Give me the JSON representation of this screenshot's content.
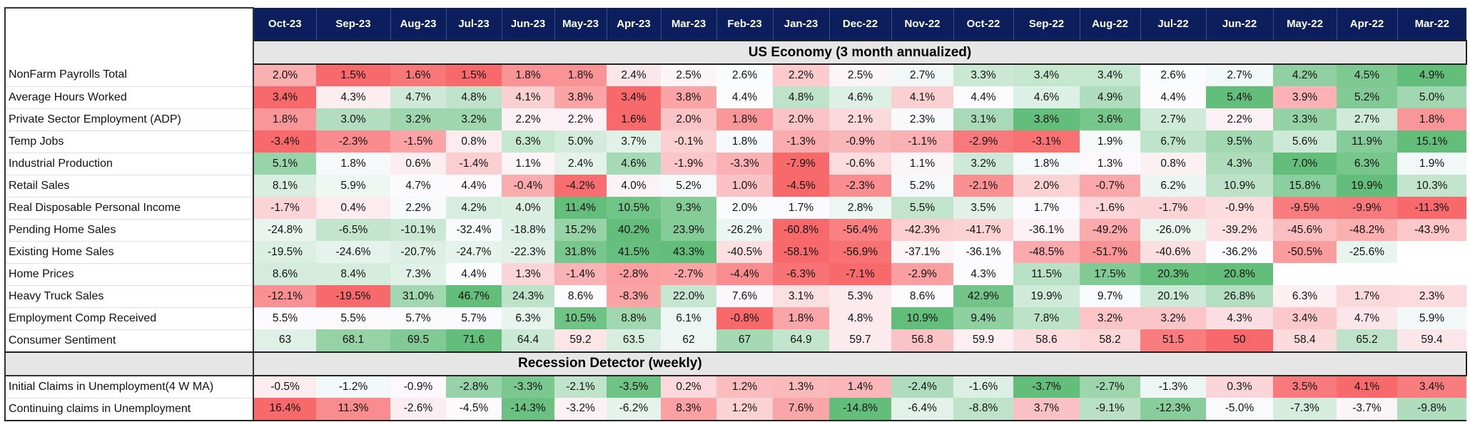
{
  "months": [
    "Oct-23",
    "Sep-23",
    "Aug-23",
    "Jul-23",
    "Jun-23",
    "May-23",
    "Apr-23",
    "Mar-23",
    "Feb-23",
    "Jan-23",
    "Dec-22",
    "Nov-22",
    "Oct-22",
    "Sep-22",
    "Aug-22",
    "Jul-22",
    "Jun-22",
    "May-22",
    "Apr-22",
    "Mar-22"
  ],
  "colors": {
    "header_bg": "#0c1f5c",
    "section_bg": "#e6e6e6",
    "low": "#f8696b",
    "mid": "#fcfcff",
    "high": "#63be7b"
  },
  "sections": [
    {
      "title": "US Economy (3 month annualized)",
      "rows": [
        {
          "label": "NonFarm Payrolls Total",
          "values": [
            "2.0%",
            "1.5%",
            "1.6%",
            "1.5%",
            "1.8%",
            "1.8%",
            "2.4%",
            "2.5%",
            "2.6%",
            "2.2%",
            "2.5%",
            "2.7%",
            "3.3%",
            "3.4%",
            "3.4%",
            "2.6%",
            "2.7%",
            "4.2%",
            "4.5%",
            "4.9%"
          ]
        },
        {
          "label": "Average Hours Worked",
          "values": [
            "3.4%",
            "4.3%",
            "4.7%",
            "4.8%",
            "4.1%",
            "3.8%",
            "3.4%",
            "3.8%",
            "4.4%",
            "4.8%",
            "4.6%",
            "4.1%",
            "4.4%",
            "4.6%",
            "4.9%",
            "4.4%",
            "5.4%",
            "3.9%",
            "5.2%",
            "5.0%"
          ]
        },
        {
          "label": "Private Sector Employment (ADP)",
          "values": [
            "1.8%",
            "3.0%",
            "3.2%",
            "3.2%",
            "2.2%",
            "2.2%",
            "1.6%",
            "2.0%",
            "1.8%",
            "2.0%",
            "2.1%",
            "2.3%",
            "3.1%",
            "3.8%",
            "3.6%",
            "2.7%",
            "2.2%",
            "3.3%",
            "2.7%",
            "1.8%"
          ]
        },
        {
          "label": "Temp Jobs",
          "values": [
            "-3.4%",
            "-2.3%",
            "-1.5%",
            "0.8%",
            "6.3%",
            "5.0%",
            "3.7%",
            "-0.1%",
            "1.8%",
            "-1.3%",
            "-0.9%",
            "-1.1%",
            "-2.9%",
            "-3.1%",
            "1.9%",
            "6.7%",
            "9.5%",
            "5.6%",
            "11.9%",
            "15.1%"
          ]
        },
        {
          "label": "Industrial Production",
          "values": [
            "5.1%",
            "1.8%",
            "0.6%",
            "-1.4%",
            "1.1%",
            "2.4%",
            "4.6%",
            "-1.9%",
            "-3.3%",
            "-7.9%",
            "-0.6%",
            "1.1%",
            "3.2%",
            "1.8%",
            "1.3%",
            "0.8%",
            "4.3%",
            "7.0%",
            "6.3%",
            "1.9%"
          ]
        },
        {
          "label": "Retail Sales",
          "values": [
            "8.1%",
            "5.9%",
            "4.7%",
            "4.4%",
            "-0.4%",
            "-4.2%",
            "4.0%",
            "5.2%",
            "1.0%",
            "-4.5%",
            "-2.3%",
            "5.2%",
            "-2.1%",
            "2.0%",
            "-0.7%",
            "6.2%",
            "10.9%",
            "15.8%",
            "19.9%",
            "10.3%"
          ]
        },
        {
          "label": "Real Disposable Personal Income",
          "values": [
            "-1.7%",
            "0.4%",
            "2.2%",
            "4.2%",
            "4.0%",
            "11.4%",
            "10.5%",
            "9.3%",
            "2.0%",
            "1.7%",
            "2.8%",
            "5.5%",
            "3.5%",
            "1.7%",
            "-1.6%",
            "-1.7%",
            "-0.9%",
            "-9.5%",
            "-9.9%",
            "-11.3%"
          ]
        },
        {
          "label": "Pending Home Sales",
          "values": [
            "-24.8%",
            "-6.5%",
            "-10.1%",
            "-32.4%",
            "-18.8%",
            "15.2%",
            "40.2%",
            "23.9%",
            "-26.2%",
            "-60.8%",
            "-56.4%",
            "-42.3%",
            "-41.7%",
            "-36.1%",
            "-49.2%",
            "-26.0%",
            "-39.2%",
            "-45.6%",
            "-48.2%",
            "-43.9%"
          ]
        },
        {
          "label": "Existing Home Sales",
          "values": [
            "-19.5%",
            "-24.6%",
            "-20.7%",
            "-24.7%",
            "-22.3%",
            "31.8%",
            "41.5%",
            "43.3%",
            "-40.5%",
            "-58.1%",
            "-56.9%",
            "-37.1%",
            "-36.1%",
            "-48.5%",
            "-51.7%",
            "-40.6%",
            "-36.2%",
            "-50.5%",
            "-25.6%",
            ""
          ]
        },
        {
          "label": "Home Prices",
          "values": [
            "8.6%",
            "8.4%",
            "7.3%",
            "4.4%",
            "1.3%",
            "-1.4%",
            "-2.8%",
            "-2.7%",
            "-4.4%",
            "-6.3%",
            "-7.1%",
            "-2.9%",
            "4.3%",
            "11.5%",
            "17.5%",
            "20.3%",
            "20.8%",
            "",
            "",
            ""
          ]
        },
        {
          "label": "Heavy Truck Sales",
          "values": [
            "-12.1%",
            "-19.5%",
            "31.0%",
            "46.7%",
            "24.3%",
            "8.6%",
            "-8.3%",
            "22.0%",
            "7.6%",
            "3.1%",
            "5.3%",
            "8.6%",
            "42.9%",
            "19.9%",
            "9.7%",
            "20.1%",
            "26.8%",
            "6.3%",
            "1.7%",
            "2.3%"
          ]
        },
        {
          "label": "Employment Comp Received",
          "values": [
            "5.5%",
            "5.5%",
            "5.7%",
            "5.7%",
            "6.3%",
            "10.5%",
            "8.8%",
            "6.1%",
            "-0.8%",
            "1.8%",
            "4.8%",
            "10.9%",
            "9.4%",
            "7.8%",
            "3.2%",
            "3.2%",
            "4.3%",
            "3.4%",
            "4.7%",
            "5.9%"
          ]
        },
        {
          "label": "Consumer Sentiment",
          "values": [
            "63",
            "68.1",
            "69.5",
            "71.6",
            "64.4",
            "59.2",
            "63.5",
            "62",
            "67",
            "64.9",
            "59.7",
            "56.8",
            "59.9",
            "58.6",
            "58.2",
            "51.5",
            "50",
            "58.4",
            "65.2",
            "59.4"
          ]
        }
      ]
    },
    {
      "title": "Recession Detector (weekly)",
      "rows": [
        {
          "label": "Initial Claims in Unemployment(4 W MA)",
          "invert": true,
          "values": [
            "-0.5%",
            "-1.2%",
            "-0.9%",
            "-2.8%",
            "-3.3%",
            "-2.1%",
            "-3.5%",
            "0.2%",
            "1.2%",
            "1.3%",
            "1.4%",
            "-2.4%",
            "-1.6%",
            "-3.7%",
            "-2.7%",
            "-1.3%",
            "0.3%",
            "3.5%",
            "4.1%",
            "3.4%"
          ]
        },
        {
          "label": "Continuing claims in Unemployment",
          "invert": true,
          "values": [
            "16.4%",
            "11.3%",
            "-2.6%",
            "-4.5%",
            "-14.3%",
            "-3.2%",
            "-6.2%",
            "8.3%",
            "1.2%",
            "7.6%",
            "-14.8%",
            "-6.4%",
            "-8.8%",
            "3.7%",
            "-9.1%",
            "-12.3%",
            "-5.0%",
            "-7.3%",
            "-3.7%",
            "-9.8%"
          ]
        }
      ]
    }
  ]
}
